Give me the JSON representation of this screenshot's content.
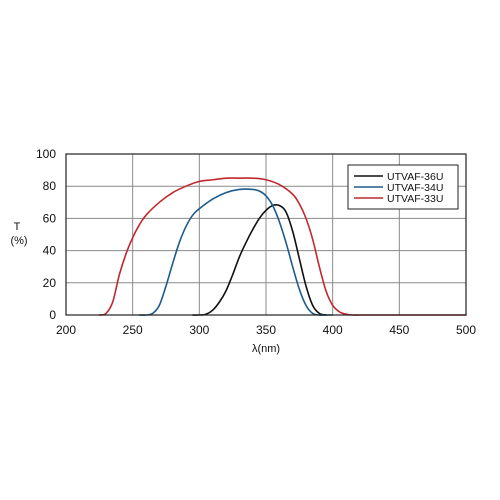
{
  "chart_data": {
    "type": "line",
    "xlabel": "λ(nm)",
    "ylabel_top": "T",
    "ylabel_bottom": "(%)",
    "xlim": [
      200,
      500
    ],
    "ylim": [
      0,
      100
    ],
    "xticks": [
      200,
      250,
      300,
      350,
      400,
      450,
      500
    ],
    "yticks": [
      0,
      20,
      40,
      60,
      80,
      100
    ],
    "grid": true,
    "legend_position": "top-right",
    "series": [
      {
        "name": "UTVAF-36U",
        "color": "#111111",
        "x": [
          295,
          300,
          305,
          310,
          315,
          320,
          325,
          330,
          335,
          340,
          345,
          350,
          355,
          360,
          365,
          370,
          375,
          380,
          385,
          390,
          395
        ],
        "y": [
          0,
          0,
          0.5,
          3,
          8,
          15,
          25,
          36,
          45,
          53,
          60,
          65,
          68,
          68,
          64,
          52,
          35,
          18,
          6,
          1,
          0
        ]
      },
      {
        "name": "UTVAF-34U",
        "color": "#1c5b8f",
        "x": [
          255,
          260,
          265,
          270,
          275,
          280,
          285,
          290,
          295,
          300,
          310,
          320,
          330,
          340,
          345,
          350,
          355,
          360,
          365,
          370,
          375,
          380,
          385,
          390,
          395,
          400
        ],
        "y": [
          0,
          0,
          1,
          6,
          18,
          32,
          45,
          55,
          62,
          66,
          72,
          76,
          78,
          78,
          77,
          74,
          68,
          58,
          45,
          30,
          16,
          6,
          1,
          0,
          0,
          0
        ]
      },
      {
        "name": "UTVAF-33U",
        "color": "#c0282d",
        "x": [
          225,
          230,
          235,
          240,
          245,
          250,
          255,
          260,
          270,
          280,
          290,
          300,
          310,
          320,
          330,
          340,
          350,
          360,
          370,
          375,
          380,
          385,
          390,
          395,
          400,
          405,
          410,
          415,
          420,
          425,
          500
        ],
        "y": [
          0,
          1,
          8,
          25,
          38,
          48,
          56,
          62,
          70,
          76,
          80,
          83,
          84,
          85,
          85,
          85,
          84,
          81,
          75,
          69,
          60,
          47,
          30,
          15,
          6,
          2,
          0.5,
          0,
          0,
          0,
          0
        ]
      }
    ]
  }
}
